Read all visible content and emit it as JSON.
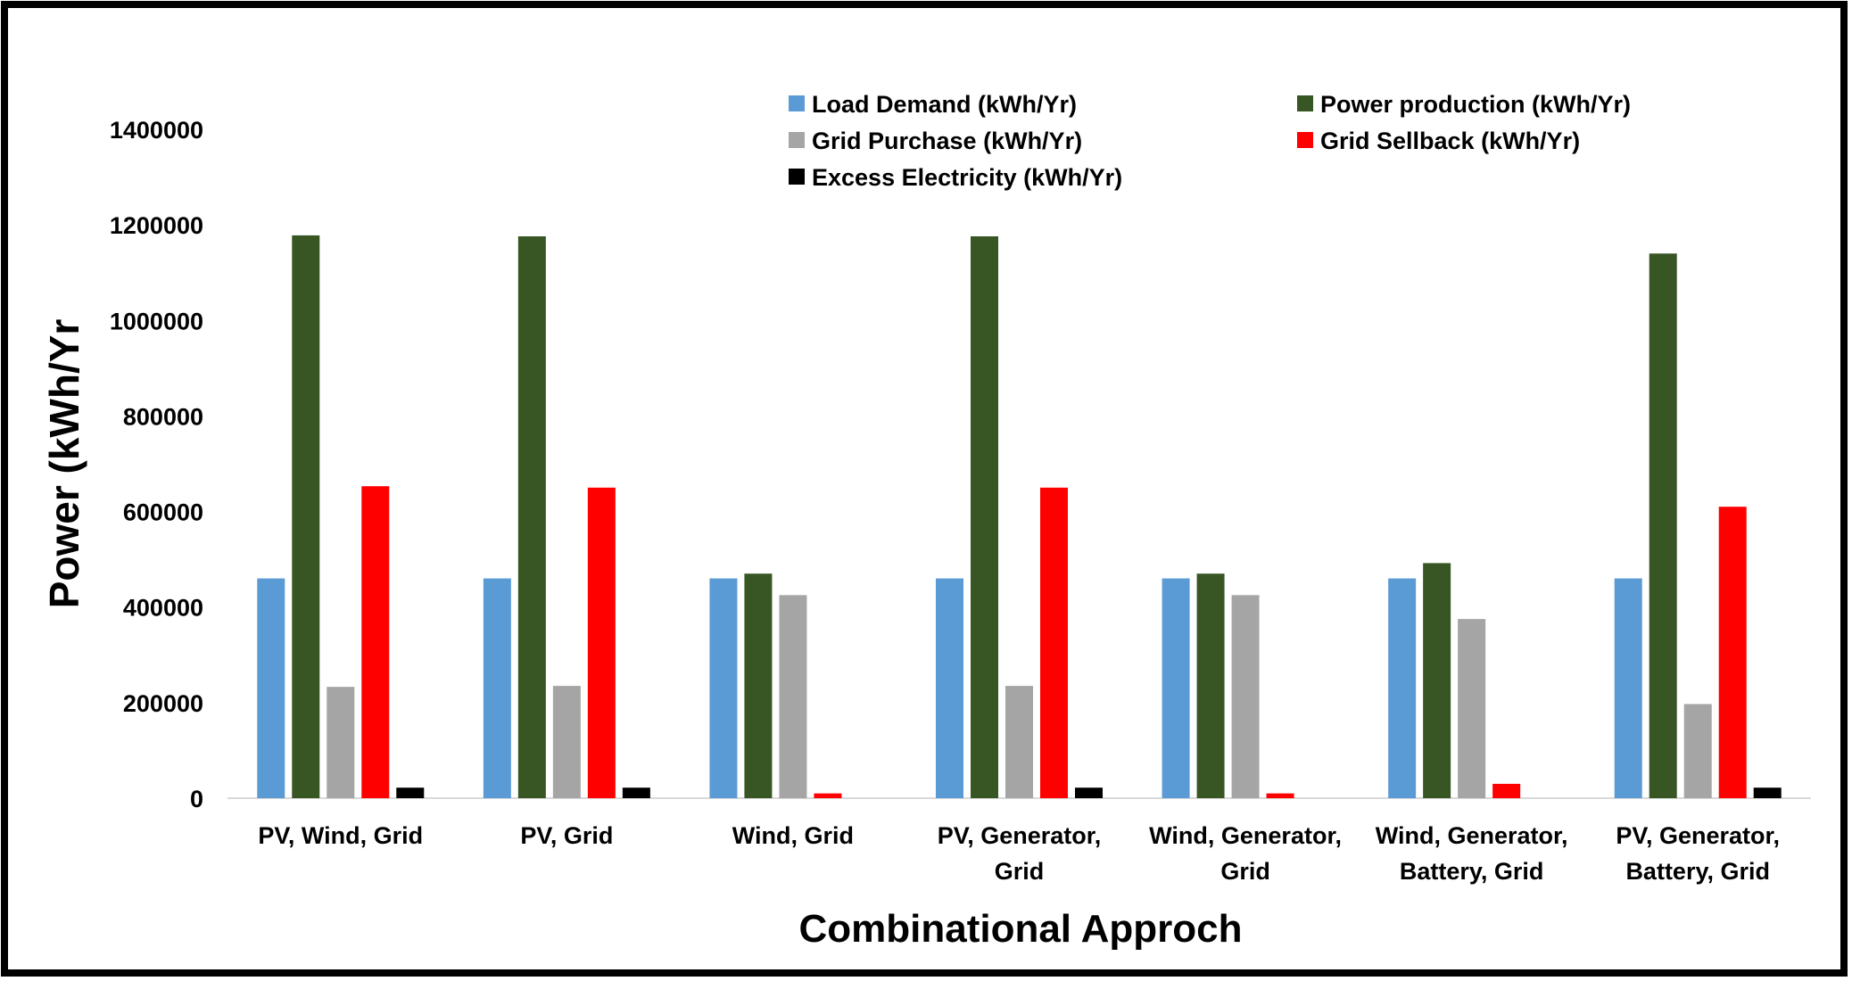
{
  "chart_data": {
    "type": "bar",
    "title": "",
    "xlabel": "Combinational Approch",
    "ylabel": "Power (kWh/Yr",
    "ylim": [
      0,
      1400000
    ],
    "yticks": [
      "0",
      "200000",
      "400000",
      "600000",
      "800000",
      "1000000",
      "1200000",
      "1400000"
    ],
    "grid": false,
    "legend_position": "top-right",
    "categories": [
      [
        "PV, Wind, Grid"
      ],
      [
        "PV, Grid"
      ],
      [
        "Wind, Grid"
      ],
      [
        "PV, Generator,",
        "Grid"
      ],
      [
        "Wind, Generator,",
        "Grid"
      ],
      [
        "Wind, Generator,",
        "Battery, Grid"
      ],
      [
        "PV, Generator,",
        "Battery, Grid"
      ]
    ],
    "series": [
      {
        "name": "Load Demand (kWh/Yr)",
        "color": "#5B9BD5",
        "values": [
          460000,
          460000,
          460000,
          460000,
          460000,
          460000,
          460000
        ]
      },
      {
        "name": "Power production (kWh/Yr)",
        "color": "#375623",
        "values": [
          1178000,
          1176000,
          470000,
          1176000,
          470000,
          492000,
          1140000
        ]
      },
      {
        "name": "Grid Purchase (kWh/Yr)",
        "color": "#A5A5A5",
        "values": [
          233000,
          235000,
          425000,
          235000,
          425000,
          375000,
          197000
        ]
      },
      {
        "name": "Grid Sellback (kWh/Yr)",
        "color": "#FF0000",
        "values": [
          653000,
          650000,
          10000,
          650000,
          10000,
          30000,
          610000
        ]
      },
      {
        "name": "Excess Electricity (kWh/Yr)",
        "color": "#000000",
        "values": [
          22000,
          22000,
          0,
          22000,
          0,
          0,
          22000
        ]
      }
    ]
  }
}
